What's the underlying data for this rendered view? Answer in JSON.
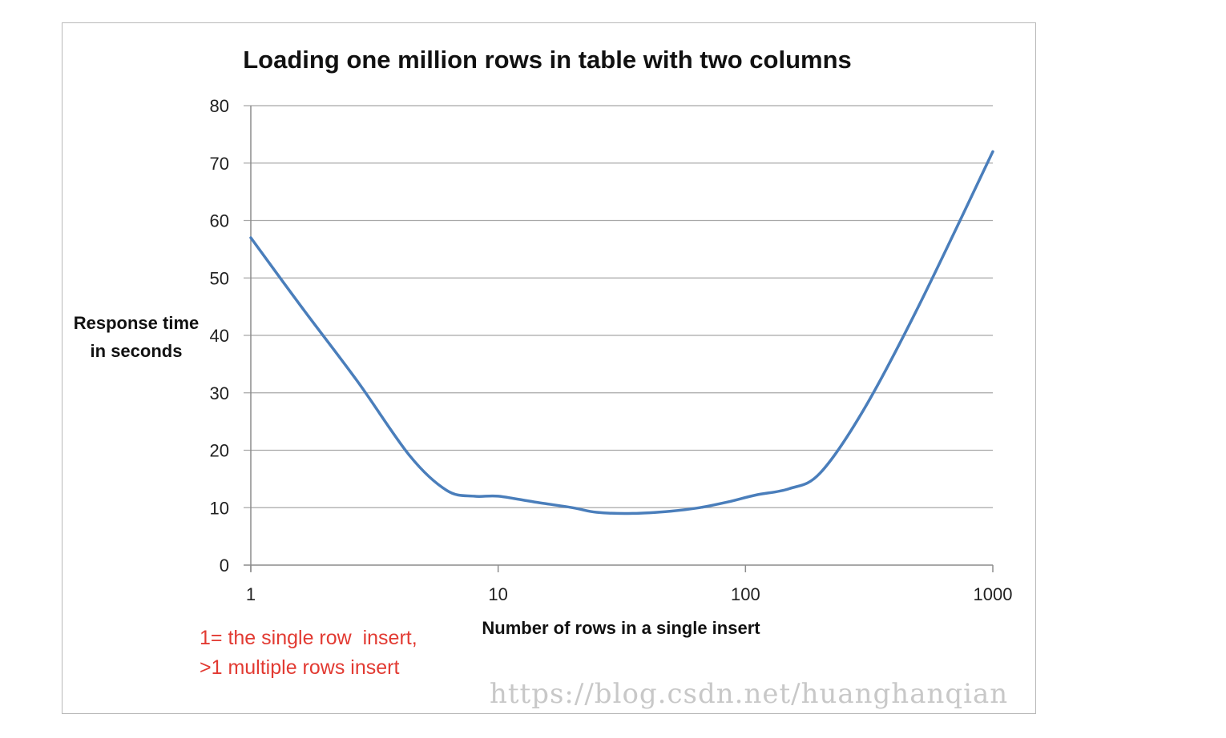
{
  "chart_data": {
    "type": "line",
    "title": "Loading one million rows in table with two columns",
    "xlabel": "Number of rows in a single insert",
    "ylabel_lines": [
      "Response time",
      "in seconds"
    ],
    "x_scale": "log",
    "xlim": [
      1,
      1000
    ],
    "ylim": [
      0,
      80
    ],
    "x_ticks": [
      1,
      10,
      100,
      1000
    ],
    "x_tick_labels": [
      "1",
      "10",
      "100",
      "1000"
    ],
    "y_ticks": [
      0,
      10,
      20,
      30,
      40,
      50,
      60,
      70,
      80
    ],
    "y_tick_labels": [
      "0",
      "10",
      "20",
      "30",
      "40",
      "50",
      "60",
      "70",
      "80"
    ],
    "grid": true,
    "series": [
      {
        "color": "#4a7ebb",
        "x": [
          1,
          1.6,
          2.7,
          4.4,
          6.2,
          8,
          10,
          14,
          20,
          25,
          35,
          50,
          65,
          85,
          110,
          150,
          200,
          300,
          500,
          1000
        ],
        "y": [
          57,
          45,
          32,
          19,
          13,
          12,
          12,
          11,
          10,
          9.2,
          9,
          9.4,
          10,
          11,
          12.2,
          13.3,
          16,
          27,
          45,
          72
        ]
      }
    ],
    "annotations": [
      "1= the single row  insert,",
      ">1 multiple rows insert"
    ]
  },
  "watermark": "https://blog.csdn.net/huanghanqian"
}
